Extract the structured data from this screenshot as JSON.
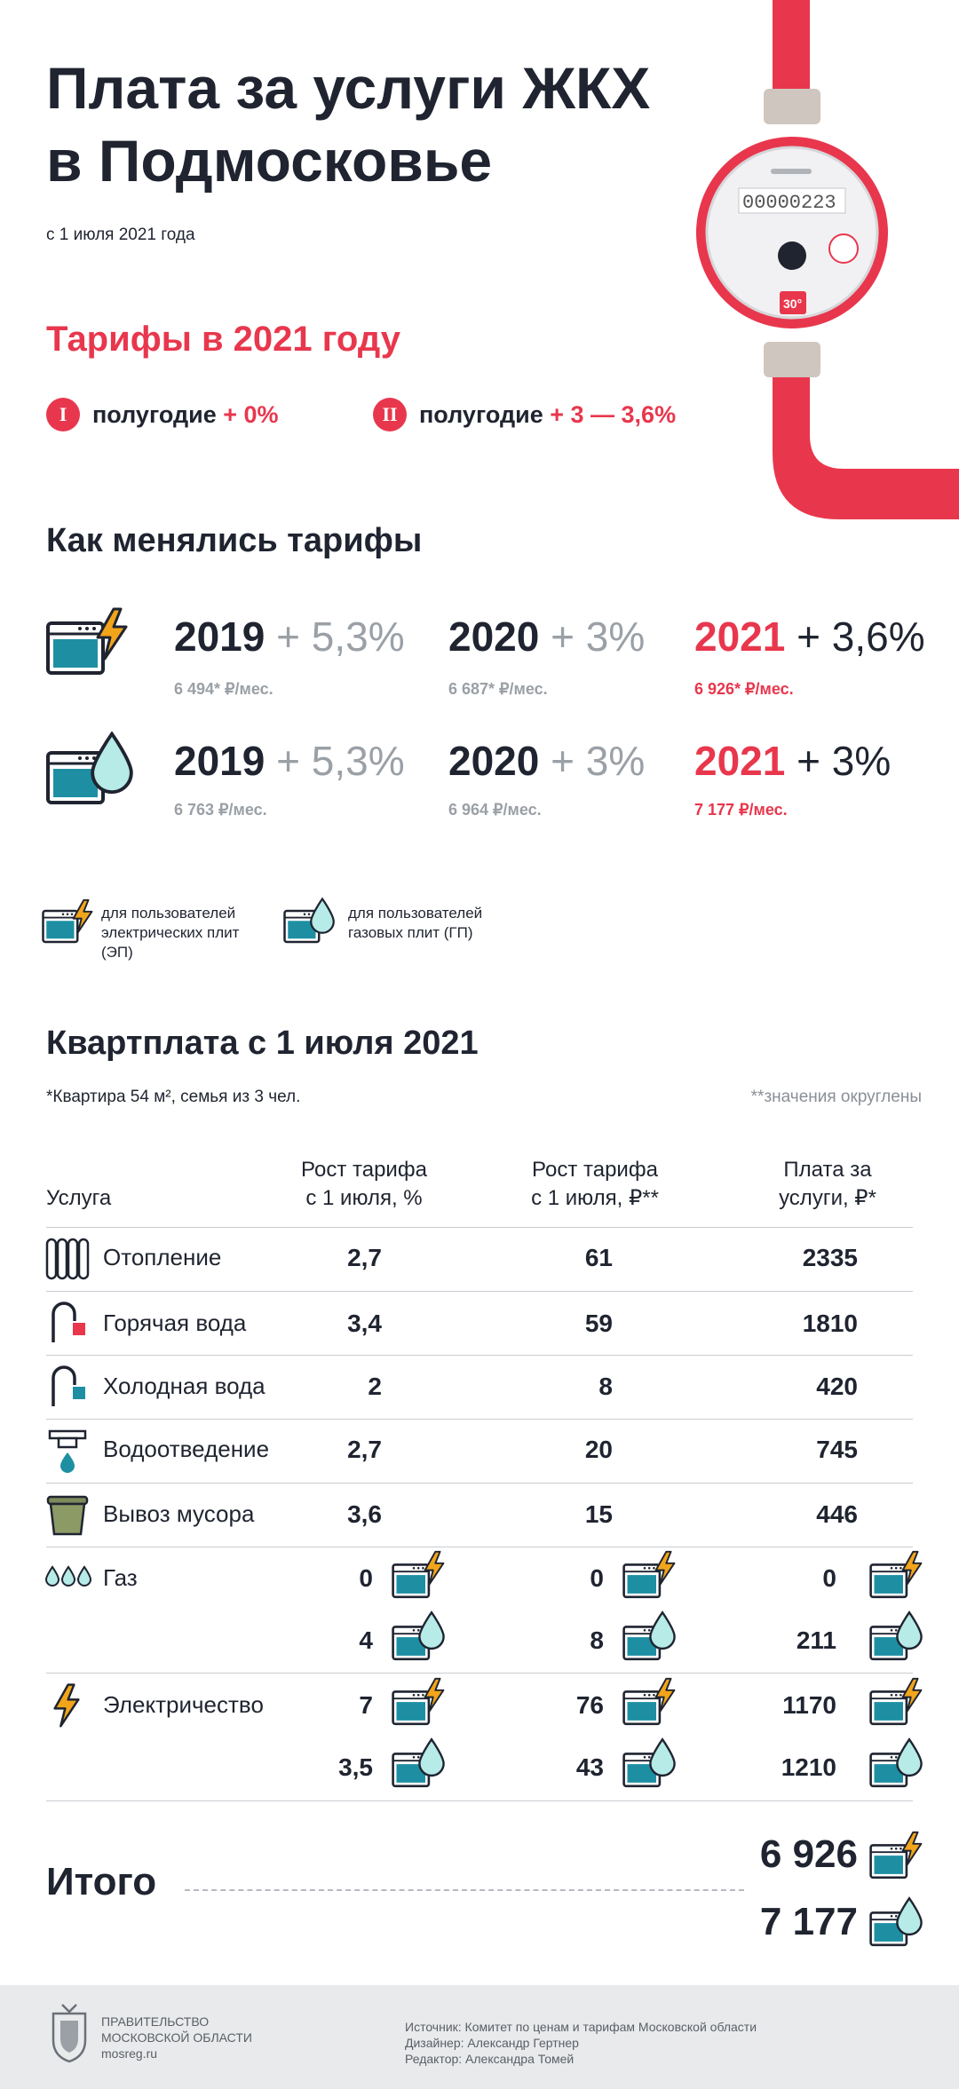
{
  "header": {
    "title_line1": "Плата за услуги ЖКХ",
    "title_line2": "в Подмосковье",
    "subtitle": "с 1 июля 2021 года"
  },
  "meter": {
    "digits": "00000223",
    "temp": "30°"
  },
  "tariffs2021": {
    "heading": "Тарифы в 2021 году",
    "h1": {
      "roman": "I",
      "label": "полугодие",
      "change": "+ 0%"
    },
    "h2": {
      "roman": "II",
      "label": "полугодие",
      "change": "+ 3 — 3,6%"
    }
  },
  "history": {
    "heading": "Как менялись тарифы",
    "electric": [
      {
        "year": "2019",
        "pct": "+ 5,3%",
        "amount": "6 494* ₽/мес."
      },
      {
        "year": "2020",
        "pct": "+ 3%",
        "amount": "6 687* ₽/мес."
      },
      {
        "year": "2021",
        "pct": "+ 3,6%",
        "amount": "6 926* ₽/мес."
      }
    ],
    "gas": [
      {
        "year": "2019",
        "pct": "+ 5,3%",
        "amount": "6 763 ₽/мес."
      },
      {
        "year": "2020",
        "pct": "+ 3%",
        "amount": "6 964 ₽/мес."
      },
      {
        "year": "2021",
        "pct": "+ 3%",
        "amount": "7 177 ₽/мес."
      }
    ]
  },
  "legend": {
    "electric": [
      "для пользователей",
      "электрических плит",
      "(ЭП)"
    ],
    "gas": [
      "для пользователей",
      "газовых плит (ГП)"
    ]
  },
  "rent": {
    "heading": "Квартплата с 1 июля 2021",
    "note_left": "*Квартира 54 м², семья из 3 чел.",
    "note_right": "**значения округлены",
    "columns": {
      "service": "Услуга",
      "pct": [
        "Рост тарифа",
        "с 1 июля, %"
      ],
      "rub": [
        "Рост тарифа",
        "с 1 июля, ₽**"
      ],
      "pay": [
        "Плата за",
        "услуги, ₽*"
      ]
    },
    "rows": [
      {
        "icon": "radiator-icon",
        "service": "Отопление",
        "pct": "2,7",
        "rub": "61",
        "pay": "2335"
      },
      {
        "icon": "hot-tap-icon",
        "service": "Горячая вода",
        "pct": "3,4",
        "rub": "59",
        "pay": "1810"
      },
      {
        "icon": "cold-tap-icon",
        "service": "Холодная вода",
        "pct": "2",
        "rub": "8",
        "pay": "420"
      },
      {
        "icon": "drain-icon",
        "service": "Водоотведение",
        "pct": "2,7",
        "rub": "20",
        "pay": "745"
      },
      {
        "icon": "trash-bin-icon",
        "service": "Вывоз мусора",
        "pct": "3,6",
        "rub": "15",
        "pay": "446"
      }
    ],
    "gas": {
      "service": "Газ",
      "electric": {
        "pct": "0",
        "rub": "0",
        "pay": "0"
      },
      "gas": {
        "pct": "4",
        "rub": "8",
        "pay": "211"
      }
    },
    "electricity": {
      "service": "Электричество",
      "electric": {
        "pct": "7",
        "rub": "76",
        "pay": "1170"
      },
      "gas": {
        "pct": "3,5",
        "rub": "43",
        "pay": "1210"
      }
    },
    "total": {
      "label": "Итого",
      "electric": "6 926",
      "gas": "7 177"
    }
  },
  "footer": {
    "org": [
      "ПРАВИТЕЛЬСТВО",
      "МОСКОВСКОЙ ОБЛАСТИ"
    ],
    "site": "mosreg.ru",
    "source": "Источник: Комитет по ценам и тарифам Московской области",
    "designer": "Дизайнер: Александр Гертнер",
    "editor": "Редактор: Александра Томей"
  },
  "colors": {
    "accent": "#e8374d",
    "dark": "#1f2430",
    "teal": "#1e8fa3",
    "gas_drop": "#b6ebe7",
    "bolt": "#f2a51b",
    "gray": "#9aa0a6"
  }
}
